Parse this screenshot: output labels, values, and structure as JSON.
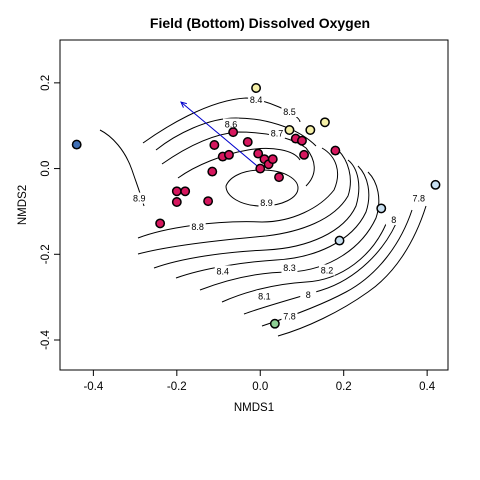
{
  "chart_data": {
    "type": "scatter",
    "title": "Field (Bottom) Dissolved Oxygen",
    "xlabel": "NMDS1",
    "ylabel": "NMDS2",
    "xlim": [
      -0.48,
      0.45
    ],
    "ylim": [
      -0.47,
      0.3
    ],
    "x_ticks": [
      -0.4,
      -0.2,
      0.0,
      0.2,
      0.4
    ],
    "x_tick_labels": [
      "-0.4",
      "-0.2",
      "0.0",
      "0.2",
      "0.4"
    ],
    "y_ticks": [
      -0.4,
      -0.2,
      0.0,
      0.2
    ],
    "y_tick_labels": [
      "-0.4",
      "-0.2",
      "0.0",
      "0.2"
    ],
    "grid": false,
    "legend": "none",
    "colors": {
      "magenta": "#d6175e",
      "yellow": "#f5f0a8",
      "blue": "#3f6fb5",
      "light_blue": "#c8dff0",
      "green": "#8dcf94",
      "arrow": "#0000cc"
    },
    "arrow": {
      "from": [
        0.0,
        0.0
      ],
      "to": [
        -0.19,
        0.155
      ]
    },
    "points": [
      {
        "x": -0.44,
        "y": 0.056,
        "color": "blue"
      },
      {
        "x": -0.24,
        "y": -0.128,
        "color": "magenta"
      },
      {
        "x": -0.2,
        "y": -0.053,
        "color": "magenta"
      },
      {
        "x": -0.18,
        "y": -0.053,
        "color": "magenta"
      },
      {
        "x": -0.2,
        "y": -0.078,
        "color": "magenta"
      },
      {
        "x": -0.125,
        "y": -0.076,
        "color": "magenta"
      },
      {
        "x": -0.11,
        "y": 0.055,
        "color": "magenta"
      },
      {
        "x": -0.115,
        "y": -0.007,
        "color": "magenta"
      },
      {
        "x": -0.09,
        "y": 0.028,
        "color": "magenta"
      },
      {
        "x": -0.075,
        "y": 0.032,
        "color": "magenta"
      },
      {
        "x": -0.065,
        "y": 0.085,
        "color": "magenta"
      },
      {
        "x": -0.03,
        "y": 0.062,
        "color": "magenta"
      },
      {
        "x": -0.005,
        "y": 0.035,
        "color": "magenta"
      },
      {
        "x": 0.0,
        "y": 0.0,
        "color": "magenta"
      },
      {
        "x": 0.01,
        "y": 0.022,
        "color": "magenta"
      },
      {
        "x": 0.02,
        "y": 0.01,
        "color": "magenta"
      },
      {
        "x": 0.03,
        "y": 0.022,
        "color": "magenta"
      },
      {
        "x": 0.045,
        "y": -0.02,
        "color": "magenta"
      },
      {
        "x": 0.085,
        "y": 0.07,
        "color": "magenta"
      },
      {
        "x": 0.1,
        "y": 0.065,
        "color": "magenta"
      },
      {
        "x": 0.105,
        "y": 0.032,
        "color": "magenta"
      },
      {
        "x": 0.18,
        "y": 0.042,
        "color": "magenta"
      },
      {
        "x": -0.01,
        "y": 0.188,
        "color": "yellow"
      },
      {
        "x": 0.07,
        "y": 0.09,
        "color": "yellow"
      },
      {
        "x": 0.12,
        "y": 0.09,
        "color": "yellow"
      },
      {
        "x": 0.155,
        "y": 0.108,
        "color": "yellow"
      },
      {
        "x": 0.29,
        "y": -0.093,
        "color": "light_blue"
      },
      {
        "x": 0.42,
        "y": -0.038,
        "color": "light_blue"
      },
      {
        "x": 0.19,
        "y": -0.168,
        "color": "light_blue"
      },
      {
        "x": 0.035,
        "y": -0.362,
        "color": "green"
      }
    ],
    "contour_labels": [
      {
        "text": "7.8",
        "x": 0.07,
        "y": -0.345
      },
      {
        "text": "8",
        "x": 0.115,
        "y": -0.295
      },
      {
        "text": "8.1",
        "x": 0.01,
        "y": -0.298
      },
      {
        "text": "8.2",
        "x": 0.16,
        "y": -0.238
      },
      {
        "text": "8.3",
        "x": 0.07,
        "y": -0.232
      },
      {
        "text": "8.4",
        "x": -0.09,
        "y": -0.24
      },
      {
        "text": "8.4",
        "x": -0.01,
        "y": 0.16
      },
      {
        "text": "8.5",
        "x": 0.07,
        "y": 0.132
      },
      {
        "text": "8.6",
        "x": -0.07,
        "y": 0.103
      },
      {
        "text": "8.7",
        "x": 0.04,
        "y": 0.082
      },
      {
        "text": "8.8",
        "x": -0.15,
        "y": -0.136
      },
      {
        "text": "8.9",
        "x": -0.29,
        "y": -0.07
      },
      {
        "text": "8.9",
        "x": 0.015,
        "y": -0.08
      },
      {
        "text": "7.8",
        "x": 0.38,
        "y": -0.07
      },
      {
        "text": "8",
        "x": 0.32,
        "y": -0.12
      }
    ]
  }
}
